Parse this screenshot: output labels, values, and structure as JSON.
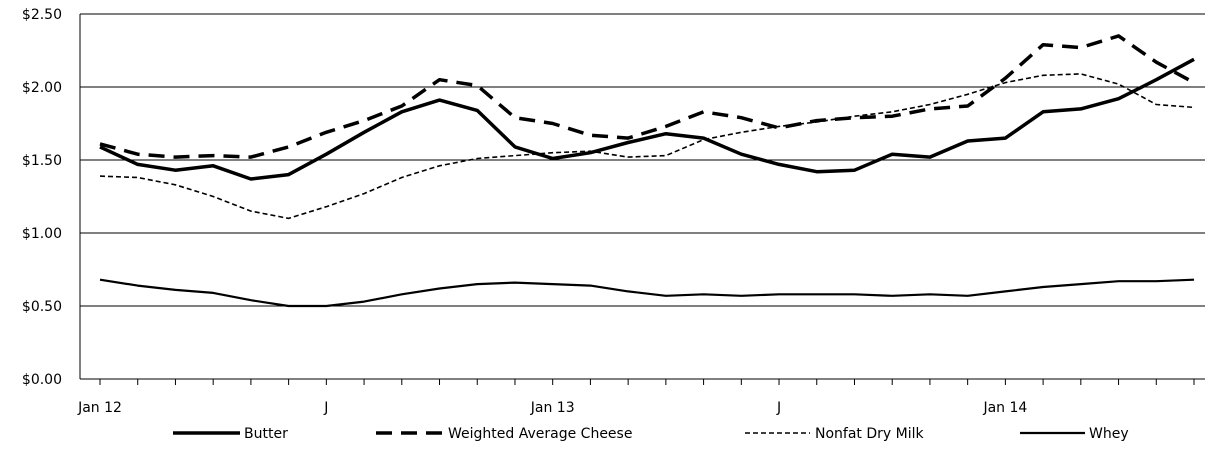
{
  "chart_data": {
    "type": "line",
    "title": "",
    "xlabel": "",
    "ylabel": "",
    "ylim": [
      0,
      2.5
    ],
    "y_ticks": [
      "$0.00",
      "$0.50",
      "$1.00",
      "$1.50",
      "$2.00",
      "$2.50"
    ],
    "y_tick_values": [
      0,
      0.5,
      1.0,
      1.5,
      2.0,
      2.5
    ],
    "x_tick_labels": [
      {
        "index": 0,
        "label": "Jan 12"
      },
      {
        "index": 6,
        "label": "J"
      },
      {
        "index": 12,
        "label": "Jan 13"
      },
      {
        "index": 18,
        "label": "J"
      },
      {
        "index": 24,
        "label": "Jan 14"
      }
    ],
    "grid": "horizontal",
    "legend_position": "bottom",
    "series": [
      {
        "name": "Butter",
        "style": "thick-solid",
        "values": [
          1.59,
          1.47,
          1.43,
          1.46,
          1.37,
          1.4,
          1.54,
          1.69,
          1.83,
          1.91,
          1.84,
          1.59,
          1.51,
          1.55,
          1.62,
          1.68,
          1.65,
          1.54,
          1.47,
          1.42,
          1.43,
          1.54,
          1.52,
          1.63,
          1.65,
          1.83,
          1.85,
          1.92,
          2.05,
          2.19
        ]
      },
      {
        "name": "Weighted Average Cheese",
        "style": "thick-dashed",
        "values": [
          1.61,
          1.54,
          1.52,
          1.53,
          1.52,
          1.59,
          1.69,
          1.77,
          1.87,
          2.05,
          2.01,
          1.79,
          1.75,
          1.67,
          1.65,
          1.73,
          1.83,
          1.79,
          1.72,
          1.77,
          1.79,
          1.8,
          1.85,
          1.87,
          2.06,
          2.29,
          2.27,
          2.35,
          2.17,
          2.03
        ]
      },
      {
        "name": "Nonfat Dry Milk",
        "style": "thin-dashed",
        "values": [
          1.39,
          1.38,
          1.33,
          1.25,
          1.15,
          1.1,
          1.18,
          1.27,
          1.38,
          1.46,
          1.51,
          1.53,
          1.55,
          1.56,
          1.52,
          1.53,
          1.64,
          1.69,
          1.73,
          1.76,
          1.8,
          1.83,
          1.88,
          1.95,
          2.03,
          2.08,
          2.09,
          2.02,
          1.88,
          1.86
        ]
      },
      {
        "name": "Whey",
        "style": "thin-solid",
        "values": [
          0.68,
          0.64,
          0.61,
          0.59,
          0.54,
          0.5,
          0.5,
          0.53,
          0.58,
          0.62,
          0.65,
          0.66,
          0.65,
          0.64,
          0.6,
          0.57,
          0.58,
          0.57,
          0.58,
          0.58,
          0.58,
          0.57,
          0.58,
          0.57,
          0.6,
          0.63,
          0.65,
          0.67,
          0.67,
          0.68
        ]
      }
    ]
  }
}
